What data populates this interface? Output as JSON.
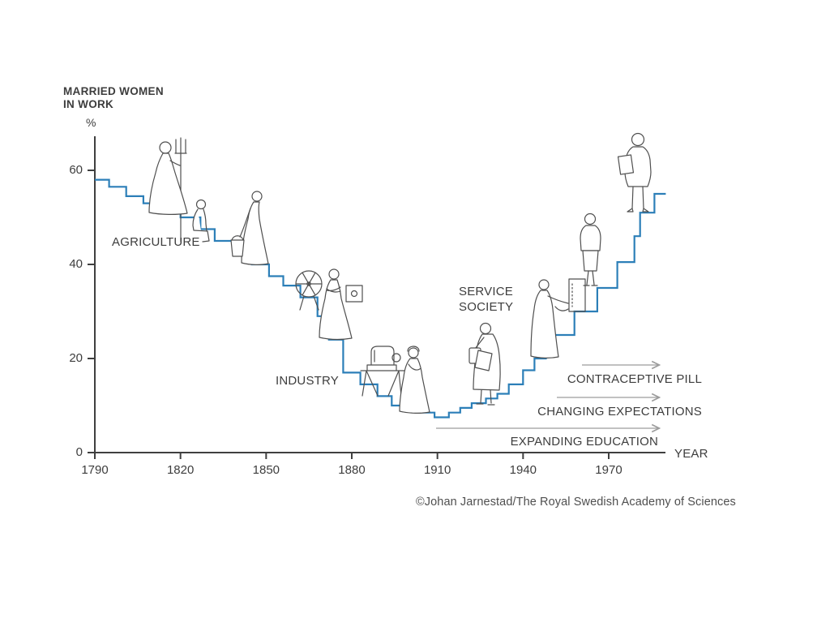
{
  "chart_data": {
    "type": "line",
    "subtype": "step",
    "title": "MARRIED WOMEN\nIN WORK",
    "ylabel": "%",
    "xlabel": "YEAR",
    "yticks": [
      60,
      40,
      20,
      0
    ],
    "xticks": [
      1790,
      1820,
      1850,
      1880,
      1910,
      1940,
      1970
    ],
    "xlim": [
      1790,
      1990
    ],
    "ylim": [
      0,
      68
    ],
    "grid": false,
    "line_color": "#2c7fb8",
    "axis_color": "#3f3f3f",
    "arrow_color": "#9c9c9c",
    "series": [
      {
        "name": "Share of married women in work (%)",
        "end_year": 1990,
        "steps": [
          [
            1790,
            58
          ],
          [
            1795,
            56.5
          ],
          [
            1801,
            54.5
          ],
          [
            1807,
            53
          ],
          [
            1813,
            51.5
          ],
          [
            1820,
            50
          ],
          [
            1827,
            47.5
          ],
          [
            1832,
            45
          ],
          [
            1839,
            42
          ],
          [
            1845,
            40
          ],
          [
            1851,
            37.5
          ],
          [
            1856,
            35.5
          ],
          [
            1862,
            33
          ],
          [
            1868,
            29
          ],
          [
            1872,
            24
          ],
          [
            1877,
            17
          ],
          [
            1883,
            14.5
          ],
          [
            1889,
            12
          ],
          [
            1894,
            10
          ],
          [
            1899,
            9
          ],
          [
            1904,
            8.5
          ],
          [
            1909,
            7.5
          ],
          [
            1914,
            8.5
          ],
          [
            1918,
            9.5
          ],
          [
            1922,
            10.5
          ],
          [
            1927,
            11.5
          ],
          [
            1931,
            12.5
          ],
          [
            1935,
            14.5
          ],
          [
            1940,
            17.5
          ],
          [
            1944,
            20
          ],
          [
            1948,
            25
          ],
          [
            1958,
            30
          ],
          [
            1966,
            35
          ],
          [
            1973,
            40.5
          ],
          [
            1979,
            46
          ],
          [
            1981,
            51
          ],
          [
            1986,
            55
          ]
        ]
      }
    ],
    "phase_labels": [
      {
        "label": "AGRICULTURE"
      },
      {
        "label": "INDUSTRY"
      },
      {
        "label": "SERVICE\nSOCIETY"
      }
    ],
    "arrows": [
      {
        "label": "CONTRACEPTIVE PILL"
      },
      {
        "label": "CHANGING EXPECTATIONS"
      },
      {
        "label": "EXPANDING EDUCATION"
      }
    ],
    "figures": [
      {
        "name": "woman-with-pitchfork",
        "era": "agriculture"
      },
      {
        "name": "seated-girl",
        "era": "agriculture"
      },
      {
        "name": "woman-with-bucket",
        "era": "agriculture"
      },
      {
        "name": "woman-at-spinning-wheel",
        "era": "industry"
      },
      {
        "name": "woman-with-sewing-machine",
        "era": "industry"
      },
      {
        "name": "woman-with-bag",
        "era": "service"
      },
      {
        "name": "woman-at-switchboard",
        "era": "service"
      },
      {
        "name": "woman-in-suit",
        "era": "service"
      },
      {
        "name": "woman-with-portfolio",
        "era": "service"
      }
    ],
    "credit": "©Johan Jarnestad/The Royal Swedish Academy of Sciences"
  }
}
